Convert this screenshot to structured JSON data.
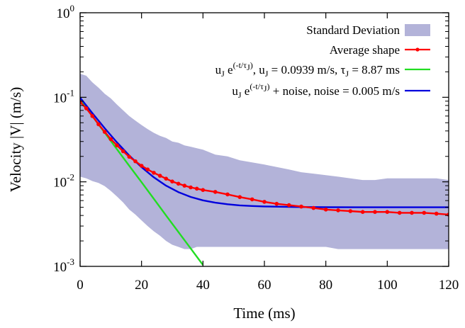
{
  "chart_data": {
    "type": "line",
    "xlabel": "Time (ms)",
    "ylabel": "Velocity |V| (m/s)",
    "xlim": [
      0,
      120
    ],
    "ylim": [
      0.001,
      1
    ],
    "y_scale": "log",
    "grid": false,
    "legend_position": "top-right",
    "x_ticks": [
      "0",
      "20",
      "40",
      "60",
      "80",
      "100",
      "120"
    ],
    "y_ticks": [
      {
        "base": "10",
        "exp": "-3",
        "value": 0.001
      },
      {
        "base": "10",
        "exp": "-2",
        "value": 0.01
      },
      {
        "base": "10",
        "exp": "-1",
        "value": 0.1
      },
      {
        "base": "10",
        "exp": "0",
        "value": 1
      }
    ],
    "legend": {
      "std_label": "Standard Deviation",
      "avg_label": "Average shape",
      "exp_label": {
        "u": "u",
        "j1": "J",
        "e": " e",
        "sup": "(-t/τ",
        "supj": "J",
        "supclose": ")",
        "rest1": ", u",
        "j2": "J",
        "rest2": " = 0.0939 m/s, τ",
        "j3": "J",
        "rest3": " = 8.87 ms"
      },
      "noise_label": {
        "u": "u",
        "j1": "J",
        "e": " e",
        "sup": "(-t/τ",
        "supj": "J",
        "supclose": ")",
        "rest": " + noise, noise = 0.005 m/s"
      }
    },
    "colors": {
      "std_band": "#b3b3d9",
      "average": "#ff0000",
      "exponential": "#22dd22",
      "exponential_noise": "#0000dd",
      "axes": "#000000"
    },
    "series": [
      {
        "name": "Standard Deviation",
        "kind": "band",
        "x": [
          0,
          2,
          4,
          6,
          8,
          10,
          12,
          14,
          16,
          18,
          20,
          22,
          24,
          26,
          28,
          30,
          32,
          34,
          36,
          38,
          40,
          44,
          48,
          52,
          56,
          60,
          64,
          68,
          72,
          76,
          80,
          84,
          88,
          92,
          96,
          100,
          104,
          108,
          112,
          116,
          120
        ],
        "lower": [
          0.0115,
          0.011,
          0.0102,
          0.0097,
          0.0089,
          0.0078,
          0.0067,
          0.0057,
          0.0047,
          0.0041,
          0.0035,
          0.003,
          0.0026,
          0.0023,
          0.002,
          0.0018,
          0.0017,
          0.0016,
          0.0016,
          0.0017,
          0.0017,
          0.0017,
          0.0017,
          0.0017,
          0.0017,
          0.0017,
          0.0017,
          0.0017,
          0.0017,
          0.0017,
          0.0017,
          0.0016,
          0.0016,
          0.0016,
          0.0016,
          0.0016,
          0.0016,
          0.0016,
          0.0016,
          0.0016,
          0.0016
        ],
        "upper": [
          0.19,
          0.18,
          0.15,
          0.13,
          0.11,
          0.097,
          0.082,
          0.07,
          0.06,
          0.053,
          0.047,
          0.042,
          0.038,
          0.035,
          0.033,
          0.03,
          0.029,
          0.027,
          0.026,
          0.025,
          0.024,
          0.021,
          0.02,
          0.018,
          0.017,
          0.016,
          0.015,
          0.014,
          0.013,
          0.0125,
          0.012,
          0.0115,
          0.011,
          0.0105,
          0.0105,
          0.011,
          0.011,
          0.011,
          0.011,
          0.011,
          0.0105
        ]
      },
      {
        "name": "Average shape",
        "kind": "line_points",
        "x": [
          0,
          2,
          4,
          6,
          8,
          10,
          12,
          14,
          16,
          18,
          20,
          22,
          24,
          26,
          28,
          30,
          32,
          34,
          36,
          38,
          40,
          44,
          48,
          52,
          56,
          60,
          64,
          68,
          72,
          76,
          80,
          84,
          88,
          92,
          96,
          100,
          104,
          108,
          112,
          116,
          120
        ],
        "values": [
          0.088,
          0.074,
          0.06,
          0.048,
          0.039,
          0.032,
          0.027,
          0.023,
          0.0198,
          0.0175,
          0.0155,
          0.014,
          0.0128,
          0.0118,
          0.0109,
          0.0101,
          0.0095,
          0.009,
          0.0086,
          0.0083,
          0.008,
          0.0076,
          0.0071,
          0.0066,
          0.0062,
          0.0058,
          0.0055,
          0.0053,
          0.0051,
          0.0049,
          0.0047,
          0.0046,
          0.0045,
          0.0044,
          0.0044,
          0.0044,
          0.0043,
          0.0043,
          0.0043,
          0.0042,
          0.0041
        ]
      },
      {
        "name": "u_J e^(-t/τ_J), u_J = 0.0939 m/s, τ_J = 8.87 ms",
        "kind": "line",
        "x": [
          0,
          4,
          8,
          12,
          16,
          20,
          24,
          28,
          32,
          36,
          40
        ],
        "values": [
          0.0939,
          0.0599,
          0.0381,
          0.0243,
          0.0155,
          0.0099,
          0.0063,
          0.004,
          0.00255,
          0.00163,
          0.00104
        ]
      },
      {
        "name": "u_J e^(-t/τ_J) + noise, noise = 0.005 m/s",
        "kind": "line",
        "x": [
          0,
          4,
          8,
          12,
          16,
          20,
          24,
          28,
          32,
          36,
          40,
          44,
          48,
          52,
          56,
          60,
          70,
          80,
          90,
          100,
          110,
          120
        ],
        "values": [
          0.0989,
          0.0649,
          0.0431,
          0.0293,
          0.0205,
          0.0149,
          0.0113,
          0.009,
          0.00755,
          0.00663,
          0.00604,
          0.00567,
          0.00543,
          0.00527,
          0.00518,
          0.00512,
          0.00504,
          0.00501,
          0.005,
          0.005,
          0.005,
          0.005
        ]
      }
    ]
  }
}
